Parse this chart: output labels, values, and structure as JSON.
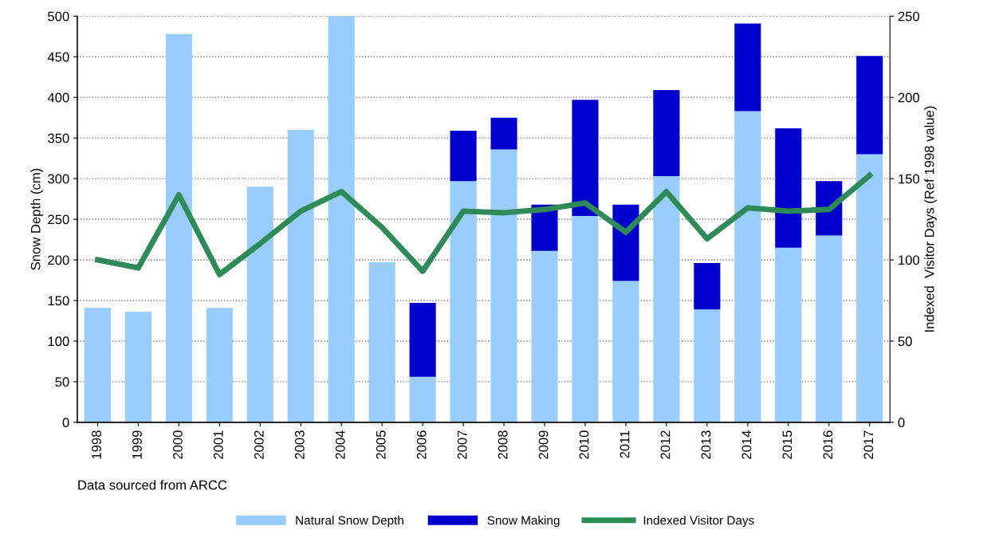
{
  "chart_data": {
    "type": "bar",
    "stacked": true,
    "categories": [
      "1998",
      "1999",
      "2000",
      "2001",
      "2002",
      "2003",
      "2004",
      "2005",
      "2006",
      "2007",
      "2008",
      "2009",
      "2010",
      "2011",
      "2012",
      "2013",
      "2014",
      "2015",
      "2016",
      "2017"
    ],
    "series": [
      {
        "name": "Natural Snow Depth",
        "color": "#99ccff",
        "values": [
          141,
          136,
          478,
          141,
          290,
          360,
          500,
          197,
          56,
          297,
          336,
          211,
          254,
          174,
          303,
          139,
          383,
          215,
          230,
          330
        ]
      },
      {
        "name": "Snow Making",
        "color": "#0000cc",
        "values": [
          null,
          null,
          null,
          null,
          null,
          null,
          null,
          null,
          91,
          62,
          39,
          57,
          143,
          94,
          106,
          57,
          108,
          147,
          67,
          121
        ]
      },
      {
        "name": "Indexed Visitor Days",
        "type": "line",
        "axis": "y2",
        "color": "#2e8b57",
        "values": [
          100,
          95,
          140,
          91,
          110,
          130,
          142,
          120,
          93,
          130,
          129,
          131,
          135,
          117,
          142,
          113,
          132,
          130,
          131,
          152
        ]
      }
    ],
    "ylabel": "Snow Depth (cm)",
    "y2label": "Indexed  Visitor Days (Ref 1998 value)",
    "ylim": [
      0,
      500
    ],
    "yticks": [
      0,
      50,
      100,
      150,
      200,
      250,
      300,
      350,
      400,
      450,
      500
    ],
    "y2lim": [
      0,
      250
    ],
    "y2ticks": [
      0,
      50,
      100,
      150,
      200,
      250
    ],
    "grid": "y",
    "legend": "bottom",
    "marker": "none",
    "line_style": "solid",
    "annotations": [
      "Data sourced from ARCC"
    ]
  }
}
